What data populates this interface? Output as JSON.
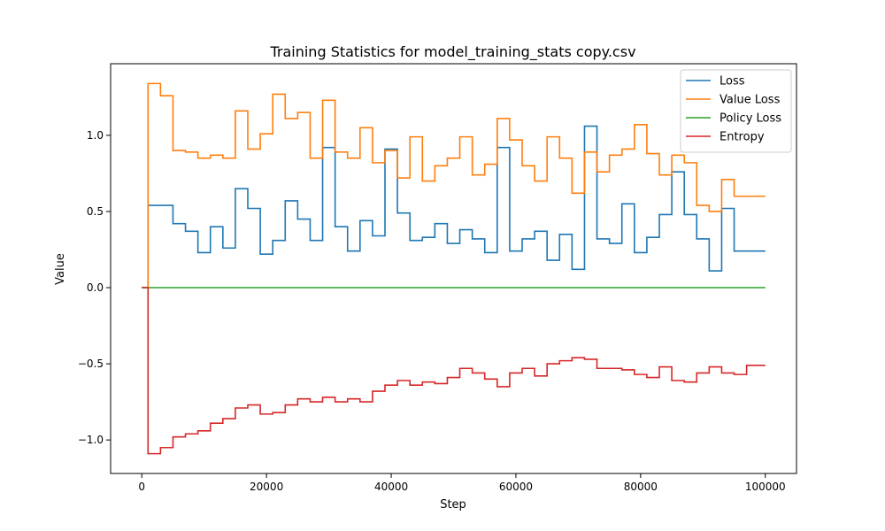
{
  "chart_data": {
    "type": "line",
    "title": "Training Statistics for model_training_stats copy.csv",
    "xlabel": "Step",
    "ylabel": "Value",
    "xlim": [
      -5000,
      105000
    ],
    "ylim": [
      -1.22,
      1.47
    ],
    "xticks": [
      0,
      20000,
      40000,
      60000,
      80000,
      100000
    ],
    "yticks": [
      -1.0,
      -0.5,
      0.0,
      0.5,
      1.0
    ],
    "xtick_labels": [
      "0",
      "20000",
      "40000",
      "60000",
      "80000",
      "100000"
    ],
    "ytick_labels": [
      "−1.0",
      "−0.5",
      "0.0",
      "0.5",
      "1.0"
    ],
    "grid": false,
    "legend_position": "top-right",
    "step_style": "mid",
    "x": [
      0,
      2000,
      4000,
      6000,
      8000,
      10000,
      12000,
      14000,
      16000,
      18000,
      20000,
      22000,
      24000,
      26000,
      28000,
      30000,
      32000,
      34000,
      36000,
      38000,
      40000,
      42000,
      44000,
      46000,
      48000,
      50000,
      52000,
      54000,
      56000,
      58000,
      60000,
      62000,
      64000,
      66000,
      68000,
      70000,
      72000,
      74000,
      76000,
      78000,
      80000,
      82000,
      84000,
      86000,
      88000,
      90000,
      92000,
      94000,
      96000,
      98000,
      100000
    ],
    "series": [
      {
        "name": "Loss",
        "color": "#1f77b4",
        "values": [
          0,
          0.54,
          0.54,
          0.42,
          0.37,
          0.23,
          0.4,
          0.26,
          0.65,
          0.52,
          0.22,
          0.31,
          0.57,
          0.45,
          0.31,
          0.92,
          0.4,
          0.24,
          0.44,
          0.34,
          0.91,
          0.49,
          0.31,
          0.33,
          0.42,
          0.29,
          0.38,
          0.32,
          0.23,
          0.92,
          0.24,
          0.32,
          0.37,
          0.18,
          0.35,
          0.12,
          1.06,
          0.32,
          0.29,
          0.55,
          0.23,
          0.33,
          0.48,
          0.76,
          0.48,
          0.32,
          0.11,
          0.52,
          0.24,
          0.24,
          0.24
        ]
      },
      {
        "name": "Value Loss",
        "color": "#ff7f0e",
        "values": [
          0,
          1.34,
          1.26,
          0.9,
          0.89,
          0.85,
          0.87,
          0.85,
          1.16,
          0.91,
          1.01,
          1.27,
          1.11,
          1.15,
          0.85,
          1.23,
          0.89,
          0.85,
          1.05,
          0.82,
          0.9,
          0.72,
          0.99,
          0.7,
          0.8,
          0.85,
          0.99,
          0.74,
          0.81,
          1.11,
          0.97,
          0.8,
          0.7,
          0.99,
          0.85,
          0.62,
          0.89,
          0.76,
          0.87,
          0.91,
          1.07,
          0.88,
          0.74,
          0.87,
          0.82,
          0.54,
          0.5,
          0.71,
          0.6,
          0.6,
          0.6
        ]
      },
      {
        "name": "Policy Loss",
        "color": "#2ca02c",
        "values": [
          0,
          0,
          0,
          0,
          0,
          0,
          0,
          0,
          0,
          0,
          0,
          0,
          0,
          0,
          0,
          0,
          0,
          0,
          0,
          0,
          0,
          0,
          0,
          0,
          0,
          0,
          0,
          0,
          0,
          0,
          0,
          0,
          0,
          0,
          0,
          0,
          0,
          0,
          0,
          0,
          0,
          0,
          0,
          0,
          0,
          0,
          0,
          0,
          0,
          0,
          0
        ]
      },
      {
        "name": "Entropy",
        "color": "#d62728",
        "values": [
          0,
          -1.09,
          -1.05,
          -0.98,
          -0.96,
          -0.94,
          -0.89,
          -0.86,
          -0.79,
          -0.77,
          -0.83,
          -0.82,
          -0.77,
          -0.73,
          -0.75,
          -0.72,
          -0.75,
          -0.73,
          -0.75,
          -0.68,
          -0.64,
          -0.61,
          -0.64,
          -0.62,
          -0.63,
          -0.59,
          -0.53,
          -0.56,
          -0.6,
          -0.65,
          -0.56,
          -0.53,
          -0.58,
          -0.5,
          -0.48,
          -0.46,
          -0.47,
          -0.53,
          -0.53,
          -0.54,
          -0.57,
          -0.59,
          -0.52,
          -0.61,
          -0.62,
          -0.56,
          -0.52,
          -0.56,
          -0.57,
          -0.51,
          -0.51
        ]
      }
    ]
  }
}
